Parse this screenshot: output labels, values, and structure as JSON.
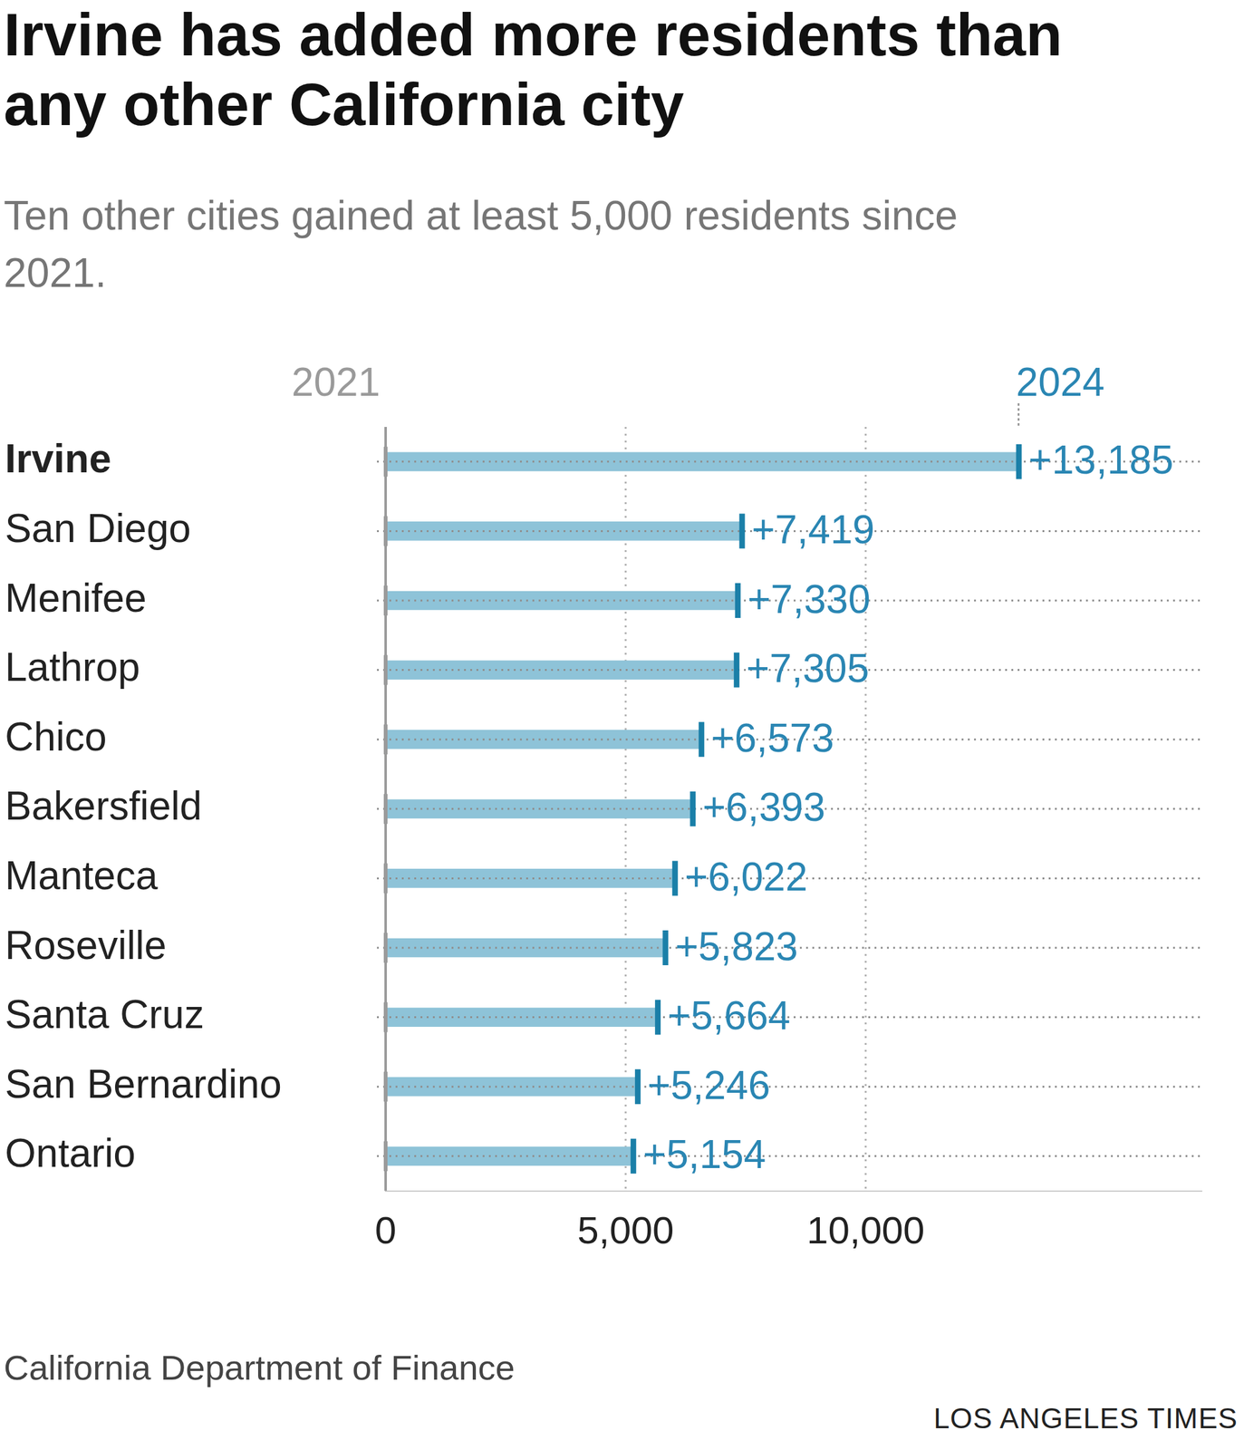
{
  "chart_data": {
    "type": "bar",
    "orientation": "horizontal",
    "title": "Irvine has added more residents than any other California city",
    "subtitle": "Ten other cities gained at least 5,000 residents since 2021.",
    "start_label": "2021",
    "end_label": "2024",
    "source": "California Department of Finance",
    "credit": "LOS ANGELES TIMES",
    "categories": [
      "Irvine",
      "San Diego",
      "Menifee",
      "Lathrop",
      "Chico",
      "Bakersfield",
      "Manteca",
      "Roseville",
      "Santa Cruz",
      "San Bernardino",
      "Ontario"
    ],
    "values": [
      13185,
      7419,
      7330,
      7305,
      6573,
      6393,
      6022,
      5823,
      5664,
      5246,
      5154
    ],
    "value_labels": [
      "+13,185",
      "+7,419",
      "+7,330",
      "+7,305",
      "+6,573",
      "+6,393",
      "+6,022",
      "+5,823",
      "+5,664",
      "+5,246",
      "+5,154"
    ],
    "color": "#8ec3d8",
    "xlim": [
      0,
      17000
    ],
    "xticks": [
      0,
      {
        "value": 5000,
        "label": "5,000"
      },
      {
        "value": 10000,
        "label": "10,000"
      }
    ],
    "grid": true,
    "data_labels": true
  }
}
